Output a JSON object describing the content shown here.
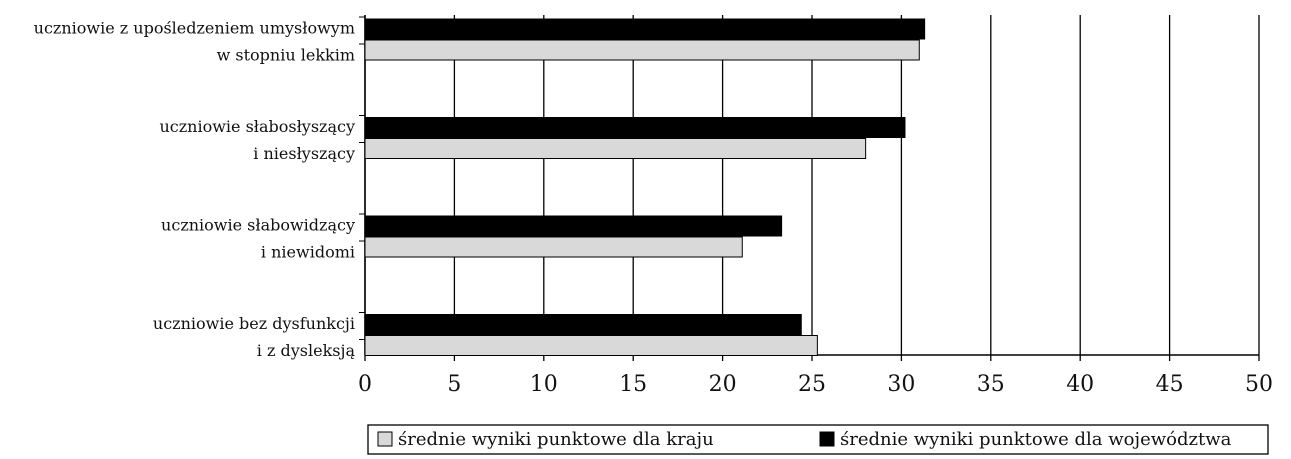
{
  "chart_data": {
    "type": "barh",
    "categories": [
      [
        "uczniowie z upośledzeniem umysłowym",
        "w stopniu lekkim"
      ],
      [
        "uczniowie słabosłyszący",
        "i niesłyszący"
      ],
      [
        "uczniowie słabowidzący",
        "i niewidomi"
      ],
      [
        "uczniowie bez dysfunkcji",
        "i z dysleksją"
      ]
    ],
    "series": [
      {
        "name": "średnie wyniki punktowe dla kraju",
        "color": "#d9d9d9",
        "values": [
          31.0,
          28.0,
          21.1,
          25.3
        ]
      },
      {
        "name": "średnie wyniki punktowe dla województwa",
        "color": "#000000",
        "values": [
          31.3,
          30.2,
          23.3,
          24.4
        ]
      }
    ],
    "xlim": [
      0,
      50
    ],
    "xticks": [
      0,
      5,
      10,
      15,
      20,
      25,
      30,
      35,
      40,
      45,
      50
    ],
    "grid": true
  }
}
